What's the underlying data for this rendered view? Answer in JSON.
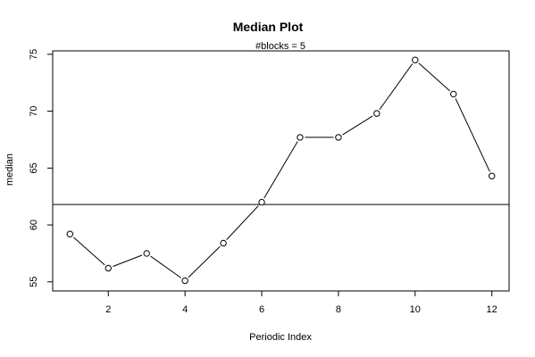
{
  "chart_data": {
    "type": "line",
    "title": "Median Plot",
    "subtitle": "#blocks =  5",
    "xlabel": "Periodic Index",
    "ylabel": "median",
    "xlim": [
      0.55,
      12.45
    ],
    "ylim": [
      54.2,
      75.3
    ],
    "x_ticks": [
      2,
      4,
      6,
      8,
      10,
      12
    ],
    "y_ticks": [
      55,
      60,
      65,
      70,
      75
    ],
    "x": [
      1,
      2,
      3,
      4,
      5,
      6,
      7,
      8,
      9,
      10,
      11,
      12
    ],
    "series": [
      {
        "values": [
          59.2,
          56.2,
          57.5,
          55.1,
          58.4,
          62.0,
          67.7,
          67.7,
          69.8,
          74.5,
          71.5,
          64.3
        ]
      }
    ],
    "reference_line": {
      "y": 61.8
    },
    "grid": false,
    "legend": "none"
  }
}
